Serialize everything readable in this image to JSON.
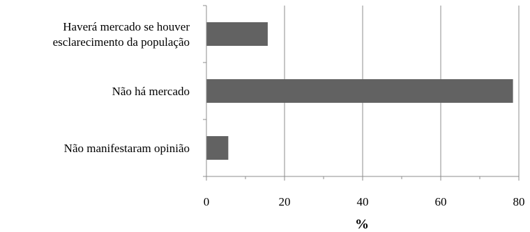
{
  "chart_data": {
    "type": "bar",
    "orientation": "horizontal",
    "categories": [
      [
        "Haverá mercado se houver",
        "esclarecimento da população"
      ],
      [
        "Não há mercado"
      ],
      [
        "Não manifestaram opinião"
      ]
    ],
    "values": [
      15.7,
      78.5,
      5.6
    ],
    "xlabel": "%",
    "xlim": [
      0,
      80
    ],
    "xticks": [
      0,
      20,
      40,
      60,
      80
    ],
    "grid": true,
    "colors": {
      "bar": "#626262"
    }
  }
}
